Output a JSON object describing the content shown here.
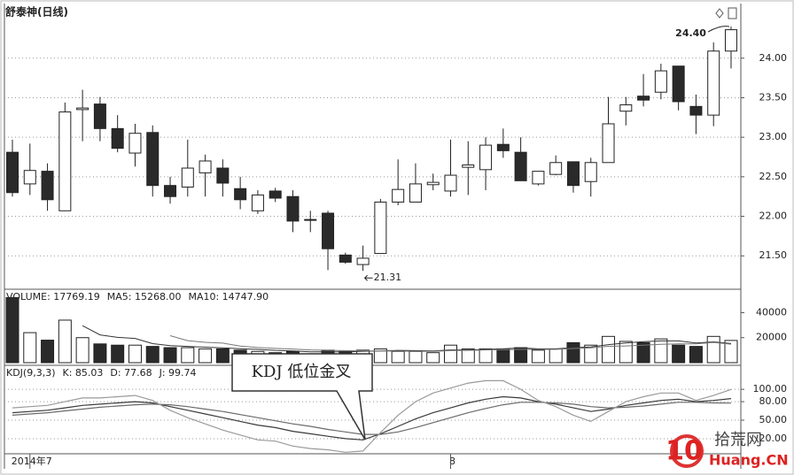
{
  "chart_data": [
    {
      "type": "candlestick",
      "title": "舒泰神(日线)",
      "categories": [
        null,
        "2014年7",
        null,
        null,
        null,
        null,
        null,
        null,
        null,
        null,
        null,
        null,
        null,
        null,
        null,
        null,
        null,
        null,
        null,
        null,
        null,
        null,
        null,
        null,
        null,
        "8",
        null,
        null,
        null,
        null,
        null,
        null,
        null,
        null,
        null,
        null,
        null,
        null,
        null,
        null,
        null,
        null
      ],
      "open": [
        22.81,
        22.41,
        22.57,
        22.07,
        23.35,
        23.42,
        23.11,
        22.8,
        23.06,
        22.39,
        22.37,
        22.55,
        22.61,
        22.35,
        22.07,
        22.32,
        22.25,
        21.96,
        22.04,
        21.51,
        21.39,
        21.53,
        22.18,
        22.18,
        22.4,
        22.32,
        22.62,
        22.59,
        22.91,
        22.81,
        22.41,
        22.53,
        22.69,
        22.44,
        22.68,
        23.33,
        23.52,
        23.57,
        23.9,
        23.39,
        23.28,
        24.09
      ],
      "high": [
        22.97,
        22.92,
        22.67,
        23.44,
        23.6,
        23.51,
        23.28,
        23.17,
        23.15,
        22.5,
        22.97,
        22.78,
        22.72,
        22.5,
        22.33,
        22.36,
        22.33,
        22.07,
        22.07,
        21.54,
        21.63,
        22.22,
        22.72,
        22.67,
        22.54,
        22.97,
        22.95,
        23.0,
        23.11,
        23.0,
        22.57,
        22.77,
        22.69,
        22.74,
        23.51,
        23.51,
        23.8,
        23.93,
        23.9,
        23.54,
        24.2,
        24.4
      ],
      "low": [
        22.25,
        22.27,
        22.07,
        22.07,
        22.95,
        22.95,
        22.81,
        22.63,
        22.25,
        22.16,
        22.25,
        22.25,
        22.25,
        22.09,
        22.03,
        22.18,
        21.8,
        21.8,
        21.32,
        21.4,
        21.31,
        21.53,
        22.14,
        22.18,
        22.33,
        22.25,
        22.27,
        22.33,
        22.74,
        22.45,
        22.39,
        22.52,
        22.3,
        22.25,
        22.68,
        23.15,
        23.39,
        23.48,
        23.34,
        23.04,
        23.14,
        23.87
      ],
      "close": [
        22.3,
        22.58,
        22.21,
        23.32,
        23.37,
        23.11,
        22.86,
        23.05,
        22.39,
        22.25,
        22.61,
        22.7,
        22.42,
        22.21,
        22.27,
        22.23,
        21.94,
        21.95,
        21.59,
        21.42,
        21.47,
        22.18,
        22.34,
        22.41,
        22.43,
        22.52,
        22.65,
        22.9,
        22.83,
        22.45,
        22.57,
        22.68,
        22.39,
        22.68,
        23.17,
        23.41,
        23.47,
        23.84,
        23.45,
        23.28,
        24.09,
        24.36
      ],
      "up_color": "#ffffff",
      "down_color": "#2a2a2a",
      "ylim": [
        21.1,
        24.68
      ],
      "yticks": [
        {
          "value": 21.5,
          "label": "21.50"
        },
        {
          "value": 22,
          "label": "22.00"
        },
        {
          "value": 22.5,
          "label": "22.50"
        },
        {
          "value": 23,
          "label": "23.00"
        },
        {
          "value": 23.5,
          "label": "23.50"
        },
        {
          "value": 24,
          "label": "24.00"
        }
      ],
      "grid": true,
      "high_label": {
        "value": 24.4,
        "label": "24.40"
      },
      "low_label": {
        "value": 21.31,
        "label": "21.31"
      }
    },
    {
      "type": "bar",
      "header": [
        "VOLUME: 17769.19",
        "MA5: 15268.00",
        "MA10: 14747.90"
      ],
      "values": [
        52000,
        24000,
        18000,
        34000,
        20000,
        15000,
        14000,
        14000,
        13000,
        12000,
        12000,
        11000,
        11000,
        10000,
        9000,
        8000,
        9000,
        7000,
        10000,
        9000,
        10000,
        11000,
        9000,
        9000,
        8000,
        14000,
        11000,
        11000,
        11000,
        12000,
        10000,
        11000,
        16000,
        14000,
        21000,
        17000,
        16000,
        19000,
        14000,
        13000,
        21000,
        17769.19
      ],
      "lines": [
        {
          "color": "#333333",
          "values": [
            null,
            null,
            null,
            null,
            29600,
            22200,
            20200,
            19400,
            15200,
            13600,
            13000,
            12400,
            11800,
            11200,
            10600,
            9800,
            9400,
            8600,
            8600,
            8600,
            9000,
            9400,
            9800,
            9600,
            9400,
            10200,
            10200,
            10600,
            11000,
            11800,
            11000,
            11000,
            12000,
            12600,
            14400,
            15800,
            16800,
            17400,
            17400,
            15800,
            16600,
            15268
          ]
        },
        {
          "color": "#777777",
          "values": [
            null,
            null,
            null,
            null,
            null,
            null,
            null,
            null,
            null,
            21600,
            17600,
            16300,
            15600,
            13200,
            12100,
            11400,
            10900,
            10200,
            9900,
            9600,
            9400,
            9400,
            9200,
            9100,
            9000,
            9600,
            9800,
            10200,
            10300,
            10600,
            10600,
            10600,
            11300,
            11800,
            13100,
            13400,
            13900,
            14700,
            15000,
            15100,
            16200,
            14747.9
          ]
        }
      ],
      "ylim": [
        0,
        58000
      ],
      "yticks": [
        20000,
        40000
      ]
    },
    {
      "type": "line",
      "header": [
        "KDJ(9,3,3)",
        "K: 85.03",
        "D: 77.68",
        "J: 99.74"
      ],
      "series": [
        {
          "color": "#3a3a3a",
          "values": [
            62,
            64,
            66,
            70,
            74,
            76,
            78,
            80,
            78,
            72,
            66,
            60,
            54,
            48,
            42,
            38,
            32,
            28,
            24,
            20,
            18,
            28,
            40,
            52,
            62,
            70,
            78,
            84,
            88,
            86,
            80,
            76,
            70,
            64,
            68,
            74,
            78,
            82,
            84,
            80,
            82,
            85.03
          ]
        },
        {
          "color": "#6a6a6a",
          "values": [
            58,
            60,
            62,
            65,
            68,
            71,
            73,
            75,
            76,
            75,
            72,
            68,
            64,
            59,
            54,
            49,
            44,
            40,
            35,
            31,
            27,
            27,
            31,
            38,
            46,
            54,
            62,
            69,
            75,
            79,
            79,
            78,
            76,
            72,
            70,
            71,
            73,
            76,
            79,
            79,
            78,
            77.68
          ]
        },
        {
          "color": "#9a9a9a",
          "values": [
            70,
            72,
            74,
            80,
            86,
            86,
            88,
            90,
            82,
            66,
            54,
            44,
            34,
            26,
            18,
            16,
            8,
            4,
            2,
            -2,
            0,
            30,
            58,
            80,
            94,
            102,
            110,
            114,
            114,
            100,
            82,
            72,
            58,
            48,
            64,
            80,
            88,
            94,
            94,
            82,
            90,
            99.74
          ]
        }
      ],
      "ylim": [
        -3,
        136
      ],
      "yticks": [
        {
          "value": 20,
          "label": "20.00"
        },
        {
          "value": 50,
          "label": "50.00"
        },
        {
          "value": 80,
          "label": "80.00"
        },
        {
          "value": 100,
          "label": "100.00"
        }
      ],
      "grid": true,
      "annotation": "KDJ 低位金叉"
    }
  ],
  "watermark": {
    "logo": "10",
    "name": "拾荒网",
    "domain": "Huang.CN"
  }
}
